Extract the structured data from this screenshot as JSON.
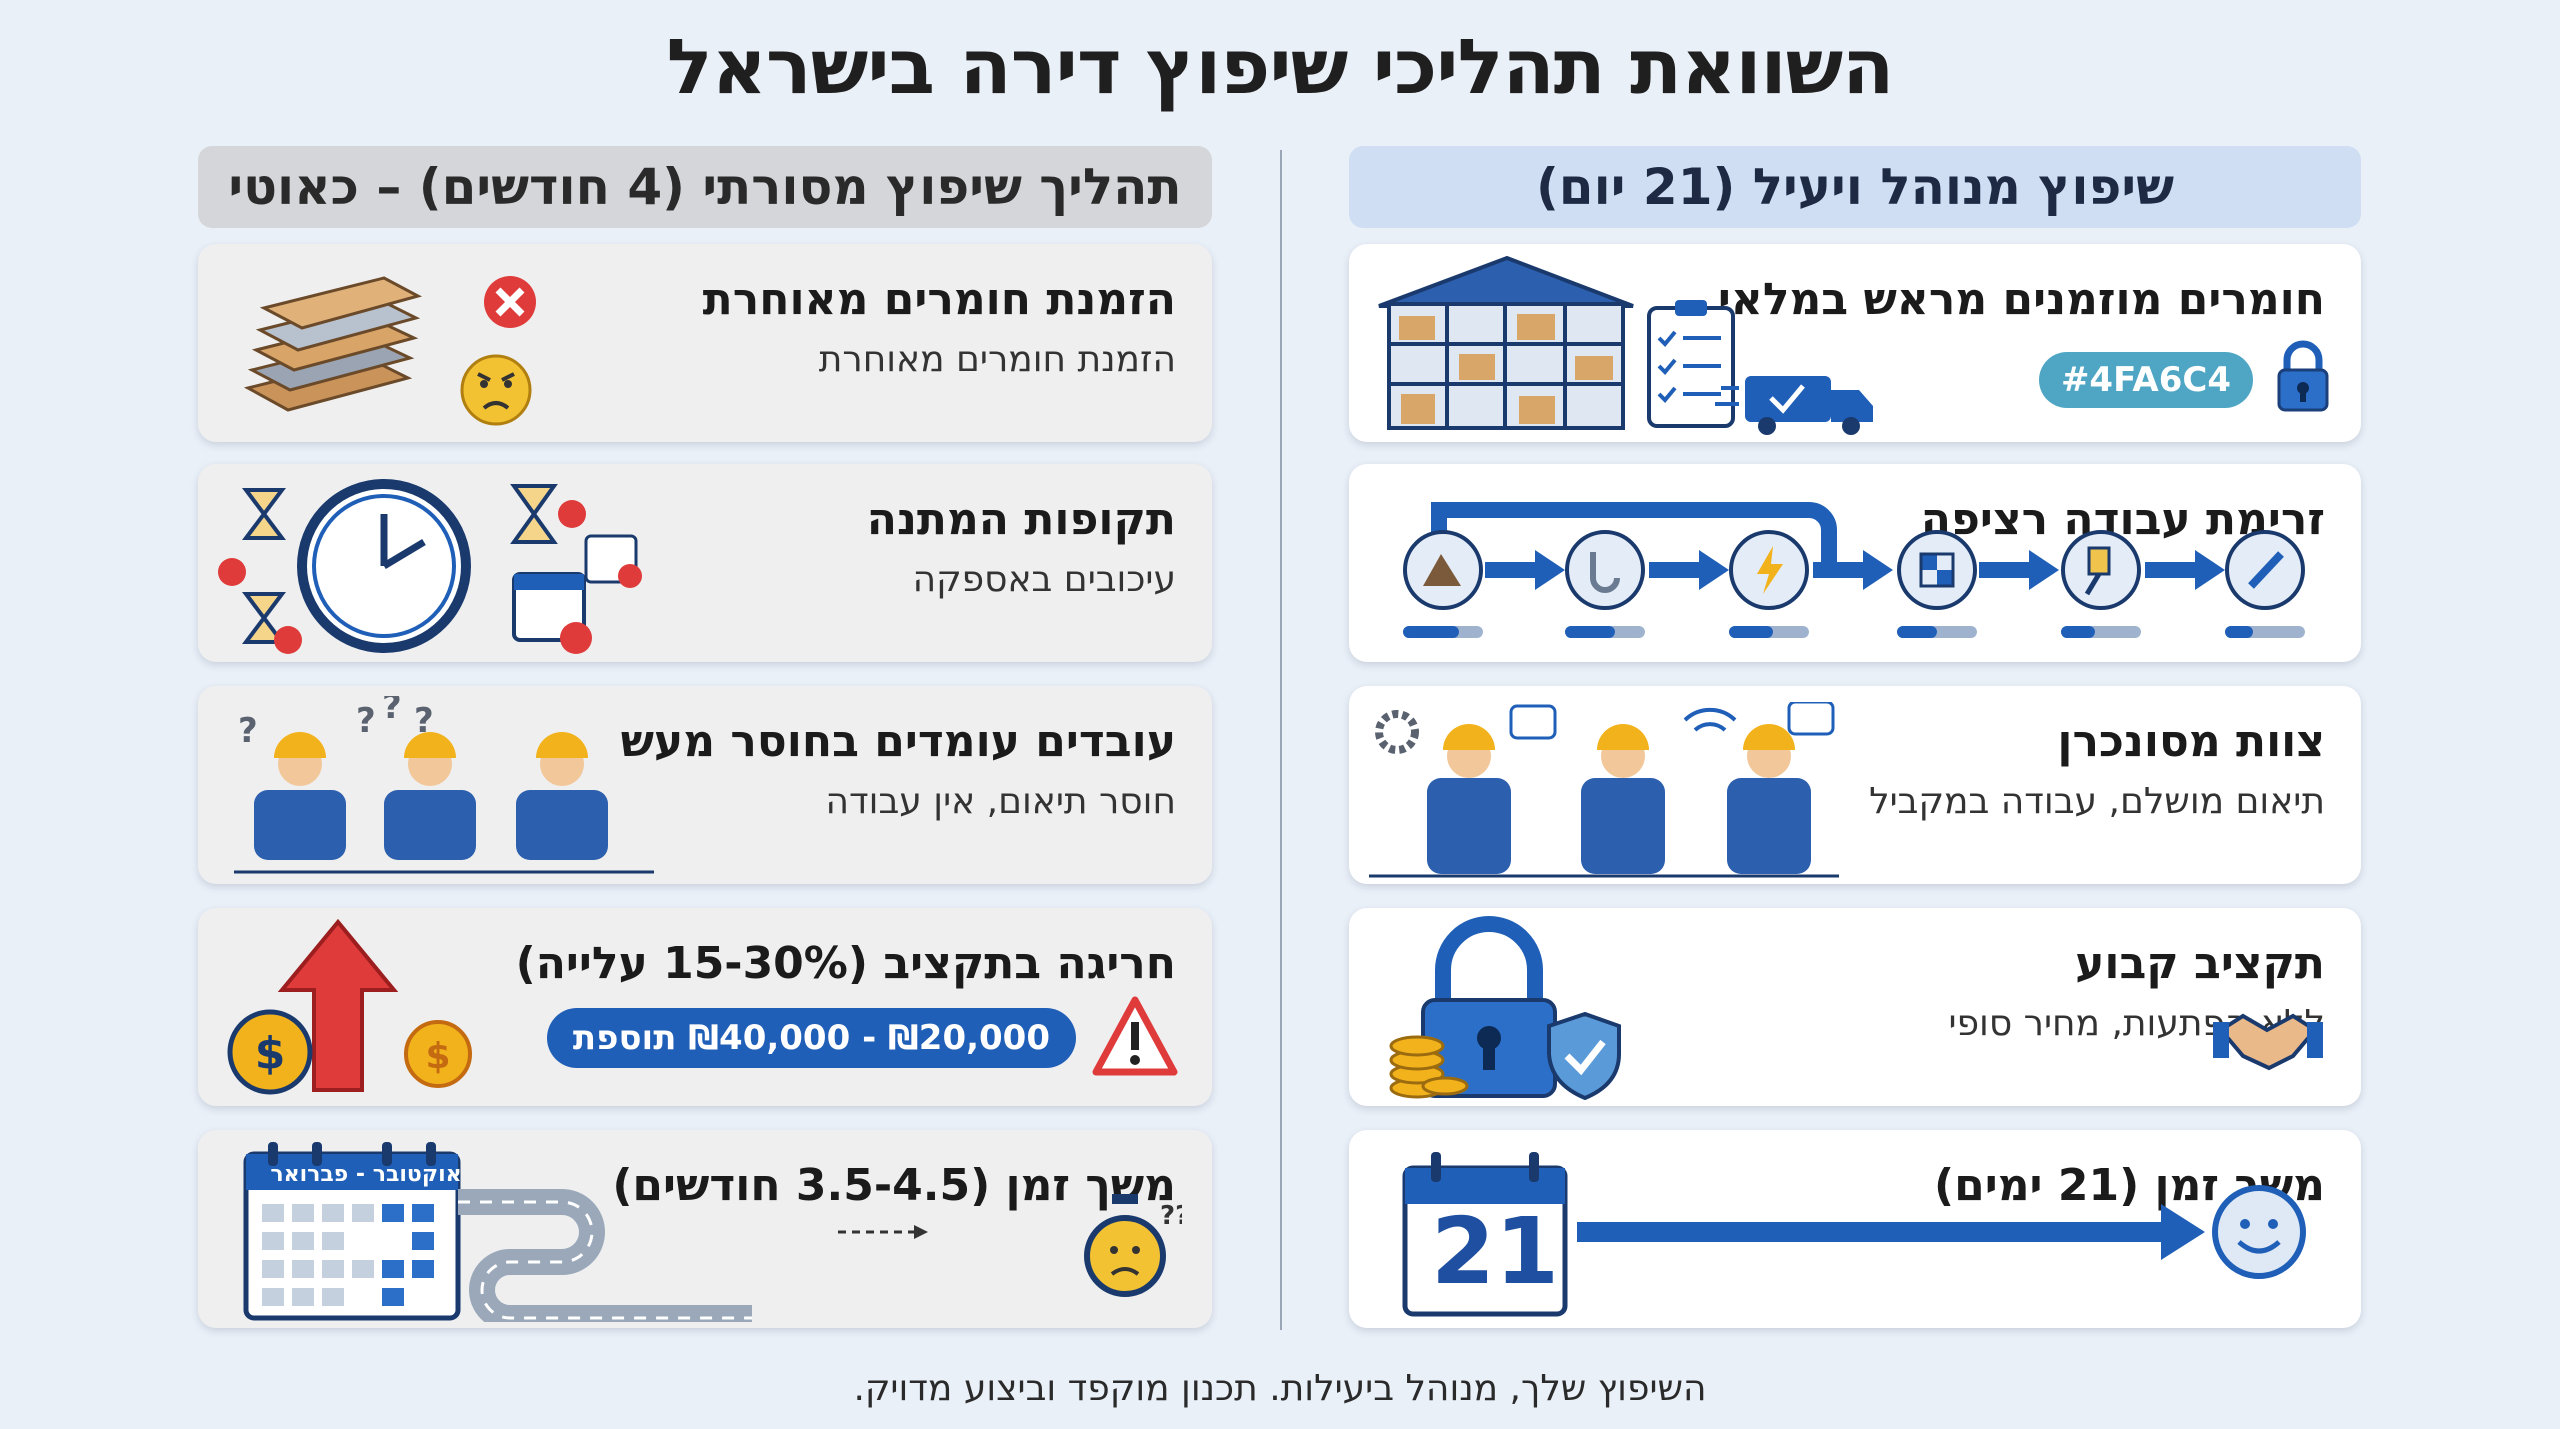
{
  "title": "השוואת תהליכי שיפוץ דירה בישראל",
  "right_column": {
    "header": "שיפוץ מנוהל ויעיל (21 יום)",
    "cards": [
      {
        "heading": "חומרים מוזמנים מראש במלאי",
        "badge": "#4FA6C4",
        "icons": [
          "warehouse-icon",
          "checklist-icon",
          "delivery-truck-icon",
          "lock-icon"
        ]
      },
      {
        "heading": "זרימת עבודה רציפה",
        "icons": [
          "demolition-icon",
          "plumbing-icon",
          "electrical-icon",
          "tiling-icon",
          "painting-icon",
          "finishing-icon"
        ]
      },
      {
        "heading": "צוות מסונכרן",
        "subtext": "תיאום מושלם, עבודה במקביל",
        "icons": [
          "synchronized-workers-icon"
        ]
      },
      {
        "heading": "תקציב קבוע",
        "subtext": "ללא הפתעות, מחיר סופי",
        "icons": [
          "lock-coins-shield-icon",
          "handshake-icon"
        ]
      },
      {
        "heading": "משך זמן (21 ימים)",
        "calendar_number": "21",
        "icons": [
          "calendar-icon",
          "arrow-icon",
          "smiley-clock-icon"
        ]
      }
    ]
  },
  "left_column": {
    "header": "תהליך שיפוץ מסורתי (4 חודשים) – כאוטי",
    "cards": [
      {
        "heading": "הזמנת חומרים מאוחרת",
        "subtext": "הזמנת חומרים מאוחרת",
        "icons": [
          "material-stack-icon",
          "error-x-icon",
          "angry-face-icon"
        ]
      },
      {
        "heading": "תקופות המתנה",
        "subtext": "עיכובים באספקה",
        "icons": [
          "clock-icon",
          "hourglass-icon",
          "calendar-error-icon"
        ]
      },
      {
        "heading": "עובדים עומדים בחוסר מעש",
        "subtext": "חוסר תיאום, אין עבודה",
        "icons": [
          "idle-workers-icon"
        ]
      },
      {
        "heading": "חריגה בתקציב (15-30% עלייה)",
        "badge": "₪20,000 - ₪40,000 תוספת",
        "icons": [
          "rising-arrow-icon",
          "coin-icon",
          "warning-icon"
        ]
      },
      {
        "heading": "משך זמן (3.5-4.5 חודשים)",
        "calendar_label": "אוקטובר - פברואר",
        "icons": [
          "calendar-icon",
          "winding-road-icon",
          "worried-stopwatch-icon"
        ]
      }
    ]
  },
  "footer": "השיפוץ שלך, מנוהל ביעילות. תכנון מוקפד וביצוע מדויק.",
  "colors": {
    "background": "#eaf0f8",
    "accent_blue": "#1f5fb8",
    "badge_teal": "#4fa6c4",
    "alert_red": "#e03b3b"
  }
}
